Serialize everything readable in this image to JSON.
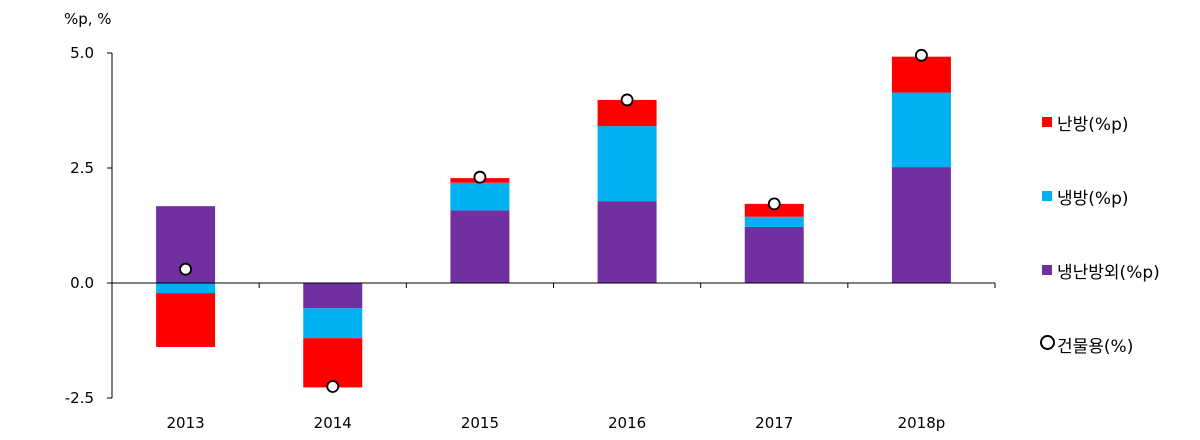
{
  "chart_data": {
    "type": "bar",
    "stacked": true,
    "unit_label": "%p, %",
    "categories": [
      "2013",
      "2014",
      "2015",
      "2016",
      "2017",
      "2018p"
    ],
    "ylim": [
      -2.5,
      5.0
    ],
    "yticks": [
      "5.0",
      "2.5",
      "0.0",
      "-2.5"
    ],
    "ytick_values": [
      5.0,
      2.5,
      0.0,
      -2.5
    ],
    "series": [
      {
        "name": "냉난방외(%p)",
        "color": "#7030A0",
        "values": [
          1.67,
          -0.55,
          1.58,
          1.78,
          1.22,
          2.52
        ]
      },
      {
        "name": "냉방(%p)",
        "color": "#00B0F0",
        "values": [
          -0.22,
          -0.65,
          0.6,
          1.63,
          0.22,
          1.62
        ]
      },
      {
        "name": "난방(%p)",
        "color": "#FF0000",
        "values": [
          -1.17,
          -1.07,
          0.1,
          0.57,
          0.28,
          0.78
        ]
      }
    ],
    "line_series": {
      "name": "건물용(%)",
      "marker": "circle",
      "values": [
        0.3,
        -2.25,
        2.3,
        3.98,
        1.72,
        4.95
      ]
    },
    "legend_position": "right"
  },
  "legend": [
    {
      "label": "난방(%p)",
      "color": "#FF0000",
      "kind": "square"
    },
    {
      "label": "냉방(%p)",
      "color": "#00B0F0",
      "kind": "square"
    },
    {
      "label": "냉난방외(%p)",
      "color": "#7030A0",
      "kind": "square"
    },
    {
      "label": "건물용(%)",
      "color": "#000000",
      "kind": "circle"
    }
  ]
}
